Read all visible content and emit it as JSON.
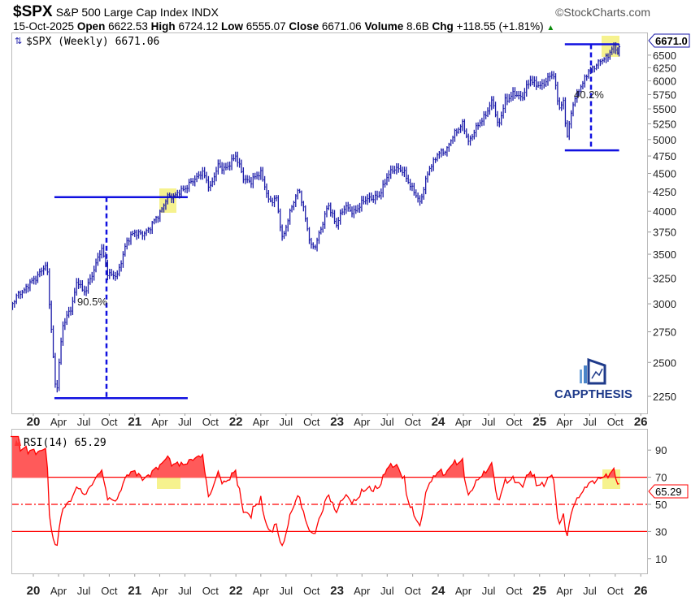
{
  "header": {
    "symbol": "$SPX",
    "name": "S&P 500 Large Cap Index",
    "exchange": "INDX",
    "brand": "©StockCharts.com",
    "date": "15-Oct-2025",
    "open_label": "Open",
    "open": "6622.53",
    "high_label": "High",
    "high": "6724.12",
    "low_label": "Low",
    "low": "6555.07",
    "close_label": "Close",
    "close": "6671.06",
    "volume_label": "Volume",
    "volume": "8.6B",
    "chg_label": "Chg",
    "chg": "+118.55 (+1.81%)",
    "chg_arrow": "▲"
  },
  "price_panel": {
    "legend": "$SPX (Weekly) 6671.06",
    "last_value_label": "6671.0",
    "line_color": "#1a1aa8",
    "annotation_2020_pct": "90.5%",
    "annotation_2025_pct": "40.2%",
    "highlight_color": "#f5f07a"
  },
  "rsi_panel": {
    "legend": "RSI(14) 65.29",
    "last_value_label": "65.29",
    "line_color": "#ff0000"
  },
  "watermark": {
    "text": "CAPPTHESIS"
  },
  "chart_data": [
    {
      "type": "line",
      "title": "$SPX (Weekly)",
      "scale": "log",
      "ylim": [
        2150,
        6800
      ],
      "y_ticks": [
        2250,
        2500,
        2750,
        3000,
        3250,
        3500,
        3750,
        4000,
        4250,
        4500,
        4750,
        5000,
        5250,
        5500,
        5750,
        6000,
        6250,
        6500
      ],
      "x_ticks": [
        "20",
        "Apr",
        "Jul",
        "Oct",
        "21",
        "Apr",
        "Jul",
        "Oct",
        "22",
        "Apr",
        "Jul",
        "Oct",
        "23",
        "Apr",
        "Jul",
        "Oct",
        "24",
        "Apr",
        "Jul",
        "Oct",
        "25",
        "Apr",
        "Jul",
        "Oct",
        "26"
      ],
      "x_tick_dates": [
        "2020-01-01",
        "2020-04-01",
        "2020-07-01",
        "2020-10-01",
        "2021-01-01",
        "2021-04-01",
        "2021-07-01",
        "2021-10-01",
        "2022-01-01",
        "2022-04-01",
        "2022-07-01",
        "2022-10-01",
        "2023-01-01",
        "2023-04-01",
        "2023-07-01",
        "2023-10-01",
        "2024-01-01",
        "2024-04-01",
        "2024-07-01",
        "2024-10-01",
        "2025-01-01",
        "2025-04-01",
        "2025-07-01",
        "2025-10-01",
        "2026-01-01"
      ],
      "series": [
        {
          "name": "$SPX weekly close (approx.)",
          "points": [
            [
              "2019-10-04",
              2952
            ],
            [
              "2019-11-01",
              3066
            ],
            [
              "2019-12-01",
              3141
            ],
            [
              "2020-01-01",
              3230
            ],
            [
              "2020-02-19",
              3386
            ],
            [
              "2020-03-23",
              2237
            ],
            [
              "2020-04-15",
              2800
            ],
            [
              "2020-05-15",
              2950
            ],
            [
              "2020-06-08",
              3230
            ],
            [
              "2020-06-30",
              3100
            ],
            [
              "2020-07-31",
              3271
            ],
            [
              "2020-09-02",
              3580
            ],
            [
              "2020-09-25",
              3300
            ],
            [
              "2020-10-30",
              3270
            ],
            [
              "2020-11-30",
              3620
            ],
            [
              "2020-12-31",
              3756
            ],
            [
              "2021-01-29",
              3714
            ],
            [
              "2021-02-26",
              3811
            ],
            [
              "2021-03-31",
              3973
            ],
            [
              "2021-04-30",
              4181
            ],
            [
              "2021-05-28",
              4204
            ],
            [
              "2021-06-30",
              4297
            ],
            [
              "2021-07-30",
              4395
            ],
            [
              "2021-08-31",
              4523
            ],
            [
              "2021-09-30",
              4308
            ],
            [
              "2021-10-29",
              4605
            ],
            [
              "2021-11-30",
              4567
            ],
            [
              "2021-12-31",
              4766
            ],
            [
              "2022-01-28",
              4432
            ],
            [
              "2022-02-25",
              4384
            ],
            [
              "2022-03-31",
              4530
            ],
            [
              "2022-04-29",
              4132
            ],
            [
              "2022-05-27",
              4158
            ],
            [
              "2022-06-17",
              3675
            ],
            [
              "2022-07-29",
              4130
            ],
            [
              "2022-08-16",
              4305
            ],
            [
              "2022-09-30",
              3586
            ],
            [
              "2022-10-14",
              3583
            ],
            [
              "2022-11-30",
              4080
            ],
            [
              "2022-12-30",
              3840
            ],
            [
              "2023-01-31",
              4077
            ],
            [
              "2023-02-28",
              3970
            ],
            [
              "2023-03-31",
              4109
            ],
            [
              "2023-04-28",
              4169
            ],
            [
              "2023-05-31",
              4180
            ],
            [
              "2023-06-30",
              4450
            ],
            [
              "2023-07-31",
              4589
            ],
            [
              "2023-08-31",
              4508
            ],
            [
              "2023-09-29",
              4288
            ],
            [
              "2023-10-27",
              4117
            ],
            [
              "2023-11-30",
              4568
            ],
            [
              "2023-12-29",
              4770
            ],
            [
              "2024-01-31",
              4846
            ],
            [
              "2024-02-29",
              5096
            ],
            [
              "2024-03-28",
              5254
            ],
            [
              "2024-04-19",
              4967
            ],
            [
              "2024-05-31",
              5277
            ],
            [
              "2024-06-28",
              5460
            ],
            [
              "2024-07-16",
              5667
            ],
            [
              "2024-08-05",
              5186
            ],
            [
              "2024-08-30",
              5648
            ],
            [
              "2024-09-30",
              5762
            ],
            [
              "2024-10-31",
              5705
            ],
            [
              "2024-11-29",
              6032
            ],
            [
              "2024-12-31",
              5882
            ],
            [
              "2025-01-31",
              6040
            ],
            [
              "2025-02-19",
              6144
            ],
            [
              "2025-03-13",
              5521
            ],
            [
              "2025-03-31",
              5612
            ],
            [
              "2025-04-08",
              4982
            ],
            [
              "2025-04-30",
              5569
            ],
            [
              "2025-05-30",
              5912
            ],
            [
              "2025-06-30",
              6205
            ],
            [
              "2025-07-31",
              6339
            ],
            [
              "2025-08-29",
              6460
            ],
            [
              "2025-09-30",
              6688
            ],
            [
              "2025-10-10",
              6552
            ],
            [
              "2025-10-15",
              6671
            ]
          ]
        }
      ],
      "annotations": [
        {
          "label": "90.5%",
          "from": [
            "2020-03-23",
            2237
          ],
          "to": [
            "2021-04-20",
            4180
          ]
        },
        {
          "label": "40.2%",
          "from": [
            "2025-04-08",
            4835
          ],
          "to": [
            "2025-10-15",
            6724
          ]
        }
      ]
    },
    {
      "type": "line",
      "title": "RSI(14)",
      "ylim": [
        0,
        100
      ],
      "y_ticks": [
        10,
        30,
        50,
        70,
        90
      ],
      "reference_lines": [
        70,
        50,
        30
      ],
      "last_value": 65.29
    }
  ]
}
